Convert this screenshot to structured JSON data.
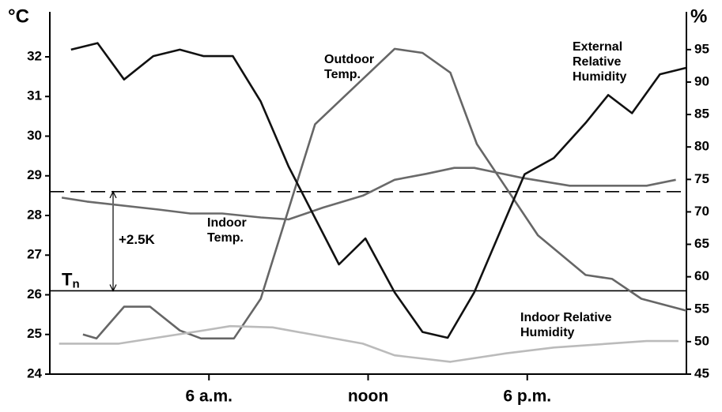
{
  "chart_data": {
    "type": "line",
    "y_label": "°C",
    "y2_label": "%",
    "xlim": [
      0,
      24
    ],
    "xticks": [
      {
        "value": 6,
        "label": "6 a.m."
      },
      {
        "value": 12,
        "label": "noon"
      },
      {
        "value": 18,
        "label": "6 p.m."
      }
    ],
    "ylim": [
      24,
      33
    ],
    "yticks": [
      24,
      25,
      26,
      27,
      28,
      29,
      30,
      31,
      32
    ],
    "y2lim": [
      45,
      100
    ],
    "y2ticks": [
      45,
      50,
      55,
      60,
      65,
      70,
      75,
      80,
      85,
      90,
      95
    ],
    "series": [
      {
        "name": "Outdoor Temp.",
        "color": "#666666",
        "axis": "y",
        "x": [
          1.25,
          1.76,
          2.8,
          3.78,
          4.9,
          5.7,
          6.94,
          7.95,
          10.0,
          13.0,
          14.05,
          15.1,
          16.1,
          18.4,
          20.2,
          21.2,
          22.3,
          24
        ],
        "values": [
          25.0,
          24.9,
          25.7,
          25.7,
          25.1,
          24.9,
          24.9,
          25.9,
          30.3,
          32.2,
          32.1,
          31.6,
          29.8,
          27.5,
          26.5,
          26.4,
          25.9,
          25.6
        ]
      },
      {
        "name": "Indoor Temp.",
        "color": "#6a6a6a",
        "axis": "y",
        "x": [
          0.45,
          1.4,
          4.1,
          5.3,
          6.5,
          7.95,
          9.0,
          10.3,
          11.8,
          13.0,
          14.2,
          15.25,
          16.0,
          17.8,
          19.6,
          22.5,
          23.6
        ],
        "values": [
          28.45,
          28.35,
          28.15,
          28.05,
          28.05,
          27.95,
          27.9,
          28.2,
          28.5,
          28.9,
          29.05,
          29.2,
          29.2,
          28.95,
          28.75,
          28.75,
          28.9
        ]
      },
      {
        "name": "External Relative Humidity",
        "color": "#111111",
        "axis": "y2",
        "x": [
          0.8,
          1.8,
          2.8,
          3.9,
          4.9,
          5.8,
          6.9,
          7.95,
          9.0,
          10.9,
          11.9,
          13.0,
          14.05,
          15.0,
          16.0,
          17.9,
          19.0,
          20.2,
          21.05,
          21.95,
          23.0,
          24
        ],
        "values": [
          95,
          96,
          90.4,
          94,
          95,
          94,
          94,
          87,
          77,
          61.9,
          65.9,
          57.6,
          51.5,
          50.6,
          57.6,
          75.8,
          78.3,
          83.7,
          88,
          85.2,
          91.2,
          92.2
        ]
      },
      {
        "name": "Indoor Relative Humidity",
        "color": "#bbbbbb",
        "axis": "y2",
        "x": [
          0.35,
          2.6,
          5.9,
          6.8,
          8.4,
          11.8,
          13.0,
          15.1,
          17.2,
          19.0,
          22.5,
          23.7
        ],
        "values": [
          49.7,
          49.7,
          51.8,
          52.4,
          52.2,
          49.7,
          47.9,
          46.9,
          48.2,
          49.1,
          50.1,
          50.1
        ]
      }
    ],
    "hlines": [
      {
        "value": 28.6,
        "style": "dashed"
      },
      {
        "value": 26.1,
        "style": "solid",
        "label": "T",
        "subscript": "n"
      }
    ],
    "annotation": "+2.5K"
  }
}
